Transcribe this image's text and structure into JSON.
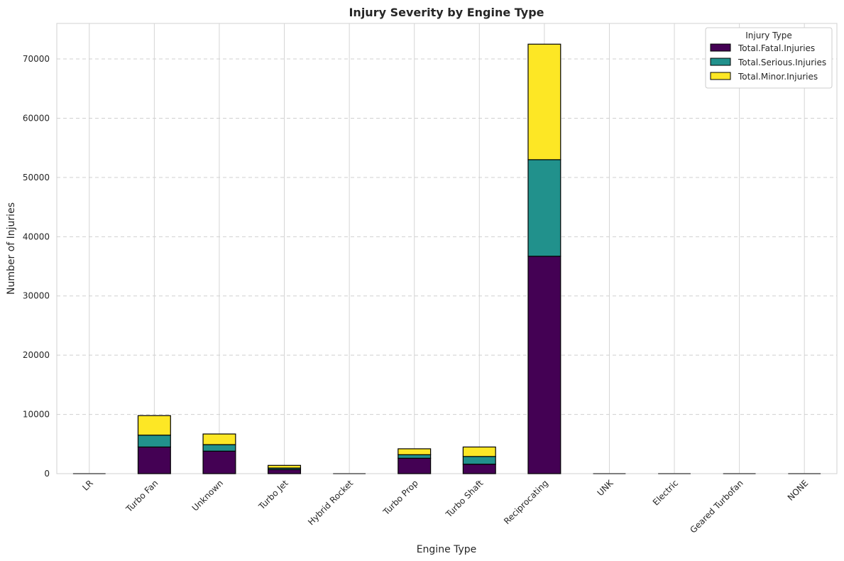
{
  "chart_data": {
    "type": "bar",
    "stacked": true,
    "title": "Injury Severity by Engine Type",
    "xlabel": "Engine Type",
    "ylabel": "Number of Injuries",
    "ylim": [
      0,
      76000
    ],
    "yticks": [
      0,
      10000,
      20000,
      30000,
      40000,
      50000,
      60000,
      70000
    ],
    "grid": true,
    "legend_title": "Injury Type",
    "legend_position": "top-right",
    "categories": [
      "LR",
      "Turbo Fan",
      "Unknown",
      "Turbo Jet",
      "Hybrid Rocket",
      "Turbo Prop",
      "Turbo Shaft",
      "Reciprocating",
      "UNK",
      "Electric",
      "Geared Turbofan",
      "NONE"
    ],
    "series": [
      {
        "name": "Total.Fatal.Injuries",
        "color": "#440154",
        "values": [
          0,
          4500,
          3800,
          700,
          0,
          2600,
          1600,
          36700,
          0,
          0,
          0,
          0
        ]
      },
      {
        "name": "Total.Serious.Injuries",
        "color": "#21918c",
        "values": [
          0,
          2000,
          1100,
          250,
          0,
          600,
          1300,
          16300,
          0,
          0,
          0,
          0
        ]
      },
      {
        "name": "Total.Minor.Injuries",
        "color": "#fde725",
        "values": [
          0,
          3300,
          1800,
          450,
          0,
          1000,
          1600,
          19500,
          0,
          0,
          0,
          0
        ]
      }
    ]
  }
}
